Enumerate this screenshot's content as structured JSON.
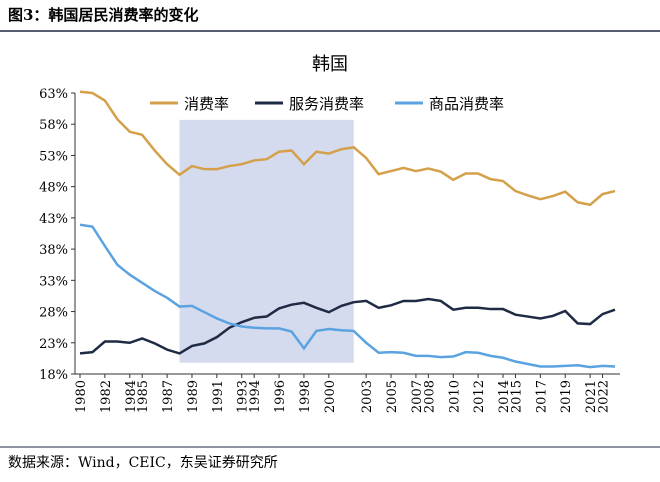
{
  "header": "图3：韩国居民消费率的变化",
  "source": "数据来源：Wind，CEIC，东吴证券研究所",
  "chart_data": {
    "type": "line",
    "title": "韩国",
    "x": [
      1980,
      1981,
      1982,
      1983,
      1984,
      1985,
      1986,
      1987,
      1988,
      1989,
      1990,
      1991,
      1992,
      1993,
      1994,
      1995,
      1996,
      1997,
      1998,
      1999,
      2000,
      2001,
      2002,
      2003,
      2004,
      2005,
      2006,
      2007,
      2008,
      2009,
      2010,
      2011,
      2012,
      2013,
      2014,
      2015,
      2016,
      2017,
      2018,
      2019,
      2020,
      2021,
      2022,
      2023
    ],
    "xlim": [
      1980,
      2023
    ],
    "xticks": [
      1980,
      1982,
      1984,
      1985,
      1987,
      1989,
      1991,
      1993,
      1994,
      1996,
      1998,
      2000,
      2003,
      2005,
      2007,
      2008,
      2010,
      2012,
      2014,
      2015,
      2017,
      2019,
      2021,
      2022
    ],
    "ylim": [
      18,
      63
    ],
    "yticks": [
      {
        "value": 18,
        "label": "18%"
      },
      {
        "value": 23,
        "label": "23%"
      },
      {
        "value": 28,
        "label": "28%"
      },
      {
        "value": 33,
        "label": "33%"
      },
      {
        "value": 38,
        "label": "38%"
      },
      {
        "value": 43,
        "label": "43%"
      },
      {
        "value": 48,
        "label": "48%"
      },
      {
        "value": 53,
        "label": "53%"
      },
      {
        "value": 58,
        "label": "58%"
      },
      {
        "value": 63,
        "label": "63%"
      }
    ],
    "shade": {
      "x": [
        1988,
        2002
      ],
      "y": [
        19.8,
        58.7
      ],
      "color": "#d5dbef"
    },
    "series": [
      {
        "name": "消费率",
        "color": "#d4a04a",
        "values": [
          63.2,
          63.0,
          61.8,
          58.8,
          56.8,
          56.3,
          53.8,
          51.6,
          49.9,
          51.3,
          50.8,
          50.8,
          51.3,
          51.6,
          52.2,
          52.4,
          53.6,
          53.8,
          51.6,
          53.6,
          53.3,
          54.0,
          54.3,
          52.6,
          50.0,
          50.5,
          51.0,
          50.5,
          50.9,
          50.4,
          49.1,
          50.1,
          50.1,
          49.2,
          48.9,
          47.3,
          46.6,
          46.0,
          46.5,
          47.2,
          45.5,
          45.1,
          46.8,
          47.3
        ]
      },
      {
        "name": "服务消费率",
        "color": "#1f2a44",
        "values": [
          21.3,
          21.5,
          23.2,
          23.2,
          23.0,
          23.7,
          22.9,
          21.9,
          21.3,
          22.5,
          22.9,
          23.9,
          25.4,
          26.3,
          27.0,
          27.2,
          28.5,
          29.1,
          29.4,
          28.6,
          27.9,
          28.9,
          29.5,
          29.7,
          28.6,
          29.0,
          29.7,
          29.7,
          30.0,
          29.7,
          28.3,
          28.6,
          28.6,
          28.4,
          28.4,
          27.5,
          27.2,
          26.9,
          27.3,
          28.1,
          26.1,
          26.0,
          27.6,
          28.3
        ]
      },
      {
        "name": "商品消费率",
        "color": "#5ba3e0",
        "values": [
          41.9,
          41.6,
          38.5,
          35.5,
          33.9,
          32.6,
          31.3,
          30.2,
          28.8,
          28.9,
          27.9,
          26.9,
          26.1,
          25.6,
          25.4,
          25.3,
          25.3,
          24.8,
          22.1,
          24.9,
          25.2,
          25.0,
          24.9,
          23.0,
          21.4,
          21.5,
          21.4,
          20.9,
          20.9,
          20.7,
          20.8,
          21.5,
          21.4,
          20.9,
          20.6,
          20.0,
          19.6,
          19.2,
          19.2,
          19.3,
          19.4,
          19.1,
          19.3,
          19.2
        ]
      }
    ]
  }
}
